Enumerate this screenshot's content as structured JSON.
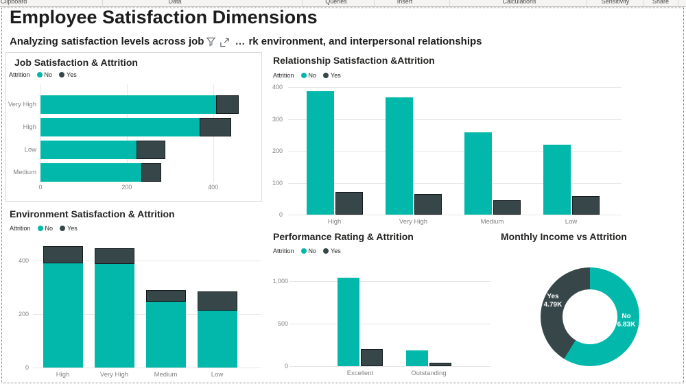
{
  "ribbon": {
    "groups": [
      "Clipboard",
      "Data",
      "Queries",
      "Insert",
      "Calculations",
      "Sensitivity",
      "Share"
    ]
  },
  "header": {
    "title": "Employee Satisfaction Dimensions",
    "subtitle_left": "Analyzing satisfaction levels across job",
    "more_options": "…",
    "subtitle_right": "rk environment, and interpersonal relationships"
  },
  "legend": {
    "label": "Attrition",
    "no": "No",
    "yes": "Yes"
  },
  "colors": {
    "no": "#01B8AA",
    "yes": "#374649"
  },
  "chart_data": [
    {
      "id": "job",
      "type": "bar",
      "orientation": "horizontal",
      "stacked": true,
      "title": "Job Satisfaction & Attrition",
      "legend_label": "Attrition",
      "categories": [
        "Very High",
        "High",
        "Low",
        "Medium"
      ],
      "series": [
        {
          "name": "No",
          "values": [
            407,
            369,
            223,
            234
          ]
        },
        {
          "name": "Yes",
          "values": [
            52,
            73,
            66,
            46
          ]
        }
      ],
      "x_ticks": [
        0,
        200,
        400
      ],
      "xlim": [
        0,
        480
      ],
      "grid": true
    },
    {
      "id": "relationship",
      "type": "bar",
      "orientation": "vertical",
      "stacked": false,
      "title": "Relationship Satisfaction &Attrition",
      "legend_label": "Attrition",
      "categories": [
        "High",
        "Very High",
        "Medium",
        "Low"
      ],
      "series": [
        {
          "name": "No",
          "values": [
            388,
            367,
            258,
            219
          ]
        },
        {
          "name": "Yes",
          "values": [
            71,
            64,
            45,
            57
          ]
        }
      ],
      "y_ticks": [
        0,
        100,
        200,
        300,
        400
      ],
      "ylim": [
        0,
        430
      ],
      "grid": true
    },
    {
      "id": "environment",
      "type": "bar",
      "orientation": "vertical",
      "stacked": true,
      "title": "Environment Satisfaction & Attrition",
      "legend_label": "Attrition",
      "categories": [
        "High",
        "Very High",
        "Medium",
        "Low"
      ],
      "series": [
        {
          "name": "No",
          "values": [
            391,
            386,
            246,
            212
          ]
        },
        {
          "name": "Yes",
          "values": [
            62,
            60,
            43,
            72
          ]
        }
      ],
      "y_ticks": [
        0,
        200,
        400
      ],
      "ylim": [
        0,
        490
      ],
      "grid": true
    },
    {
      "id": "performance",
      "type": "bar",
      "orientation": "vertical",
      "stacked": false,
      "title": "Performance Rating & Attrition",
      "legend_label": "Attrition",
      "categories": [
        "Excellent",
        "Outstanding"
      ],
      "series": [
        {
          "name": "No",
          "values": [
            1044,
            189
          ]
        },
        {
          "name": "Yes",
          "values": [
            200,
            37
          ]
        }
      ],
      "y_ticks": [
        0,
        500,
        1000
      ],
      "ylim": [
        0,
        1100
      ],
      "grid": true
    },
    {
      "id": "income",
      "type": "donut",
      "title": "Monthly Income vs Attrition",
      "slices": [
        {
          "name": "No",
          "value": 6.83,
          "value_label": "6.83K"
        },
        {
          "name": "Yes",
          "value": 4.79,
          "value_label": "4.79K"
        }
      ]
    }
  ]
}
